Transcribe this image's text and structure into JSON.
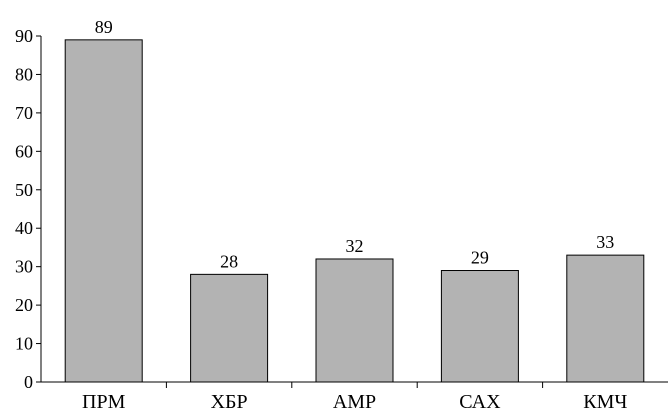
{
  "chart_data": {
    "type": "bar",
    "categories": [
      "ПРМ",
      "ХБР",
      "АМР",
      "САХ",
      "КМЧ"
    ],
    "values": [
      89,
      28,
      32,
      29,
      33
    ],
    "data_labels": [
      "89",
      "28",
      "32",
      "29",
      "33"
    ],
    "ylim": [
      0,
      90
    ],
    "yticks": [
      0,
      10,
      20,
      30,
      40,
      50,
      60,
      70,
      80,
      90
    ],
    "ytick_labels": [
      "0",
      "10",
      "20",
      "30",
      "40",
      "50",
      "60",
      "70",
      "80",
      "90"
    ],
    "grid": false,
    "legend": "none",
    "colors": {
      "bar_fill": "#b3b3b3",
      "bar_stroke": "#000000",
      "axis": "#000000"
    }
  }
}
